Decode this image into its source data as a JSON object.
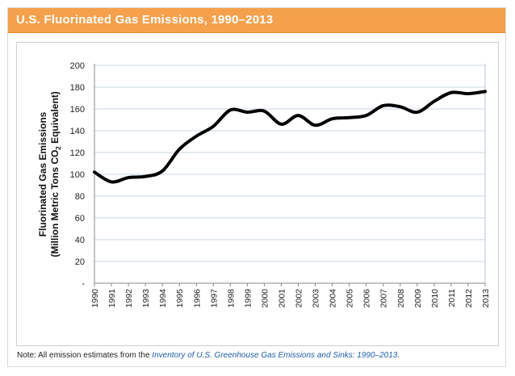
{
  "header": {
    "title": "U.S. Fluorinated Gas Emissions, 1990–2013"
  },
  "note": {
    "prefix": "Note: All emission estimates from the ",
    "link": "Inventory of U.S. Greenhouse Gas Emissions and Sinks: 1990–2013",
    "suffix": "."
  },
  "colors": {
    "header": "#f5a04a",
    "line": "#000000",
    "grid": "#c8d4e6"
  },
  "chart_data": {
    "type": "line",
    "title": "U.S. Fluorinated Gas Emissions, 1990–2013",
    "ylabel_line1": "Fluorinated Gas Emissions",
    "ylabel_line2": "(Million Metric Tons CO",
    "ylabel_sub": "2",
    "ylabel_line2_end": " Equivalent)",
    "xlabel": "",
    "ylim": [
      0,
      200
    ],
    "y_ticks": [
      "-",
      "20",
      "40",
      "60",
      "80",
      "100",
      "120",
      "140",
      "160",
      "180",
      "200"
    ],
    "categories": [
      "1990",
      "1991",
      "1992",
      "1993",
      "1994",
      "1995",
      "1996",
      "1997",
      "1998",
      "1999",
      "2000",
      "2001",
      "2002",
      "2003",
      "2004",
      "2005",
      "2006",
      "2007",
      "2008",
      "2009",
      "2010",
      "2011",
      "2012",
      "2013"
    ],
    "values": [
      102,
      93,
      97,
      98,
      103,
      123,
      135,
      144,
      159,
      157,
      158,
      146,
      154,
      145,
      151,
      152,
      154,
      163,
      162,
      157,
      167,
      175,
      174,
      176
    ],
    "grid": true
  }
}
